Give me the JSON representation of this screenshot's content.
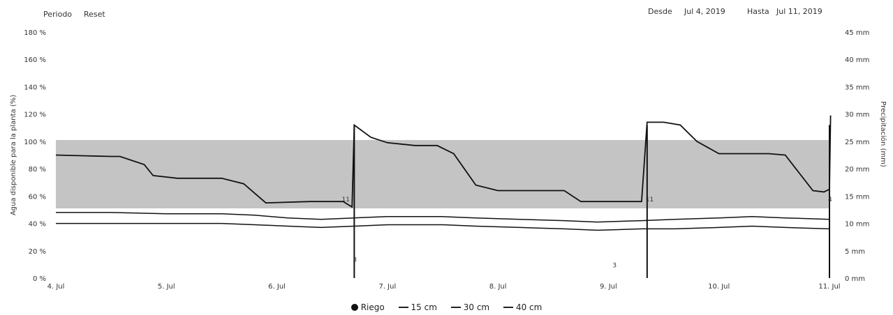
{
  "header": {
    "period_label": "Periodo",
    "reset_label": "Reset",
    "from_label": "Desde",
    "from_value": "Jul 4, 2019",
    "to_label": "Hasta",
    "to_value": "Jul 11, 2019"
  },
  "legend": {
    "riego": "Riego",
    "cm15": "15 cm",
    "cm30": "30 cm",
    "cm40": "40 cm"
  },
  "chart_data": {
    "type": "line",
    "ylabel": "Agua disponible para la planta (%)",
    "y2label": "Precipitación (mm)",
    "y_ticks": [
      "0 %",
      "20 %",
      "40 %",
      "60 %",
      "80 %",
      "100 %",
      "120 %",
      "140 %",
      "160 %",
      "180 %"
    ],
    "y_tick_values": [
      0,
      20,
      40,
      60,
      80,
      100,
      120,
      140,
      160,
      180
    ],
    "y2_ticks": [
      "0 mm",
      "5 mm",
      "10 mm",
      "15 mm",
      "20 mm",
      "25 mm",
      "30 mm",
      "35 mm",
      "40 mm",
      "45 mm"
    ],
    "y2_tick_values": [
      0,
      5,
      10,
      15,
      20,
      25,
      30,
      35,
      40,
      45
    ],
    "ylim": [
      0,
      180
    ],
    "y2lim": [
      0,
      45
    ],
    "x_ticks": [
      "4. Jul",
      "5. Jul",
      "6. Jul",
      "7. Jul",
      "8. Jul",
      "9. Jul",
      "10. Jul",
      "11. Jul"
    ],
    "x_tick_values": [
      0,
      1,
      2,
      3,
      4,
      5,
      6,
      7
    ],
    "xlim": [
      0,
      7
    ],
    "band": {
      "from": 51,
      "to": 101
    },
    "grid": false,
    "legend_position": "bottom",
    "series": [
      {
        "name": "15 cm",
        "x": [
          0,
          0.5,
          0.58,
          0.8,
          0.88,
          1.1,
          1.5,
          1.7,
          1.9,
          2.3,
          2.6,
          2.68,
          2.7,
          2.85,
          3.0,
          3.25,
          3.45,
          3.6,
          3.8,
          4.0,
          4.2,
          4.6,
          4.75,
          5.15,
          5.3,
          5.35,
          5.5,
          5.65,
          5.8,
          6.0,
          6.2,
          6.45,
          6.6,
          6.85,
          6.95,
          7.0,
          7.01
        ],
        "y": [
          90,
          89,
          89,
          83,
          75,
          73,
          73,
          69,
          55,
          56,
          56,
          52,
          112,
          103,
          99,
          97,
          97,
          91,
          68,
          64,
          64,
          64,
          56,
          56,
          56,
          114,
          114,
          112,
          100,
          91,
          91,
          91,
          90,
          64,
          63,
          65,
          119
        ]
      },
      {
        "name": "30 cm",
        "x": [
          0,
          0.5,
          1,
          1.5,
          1.8,
          2.1,
          2.4,
          2.7,
          3,
          3.5,
          3.8,
          4.2,
          4.6,
          4.9,
          5.3,
          5.6,
          6,
          6.3,
          6.6,
          7
        ],
        "y": [
          48,
          48,
          47,
          47,
          46,
          44,
          43,
          44,
          45,
          45,
          44,
          43,
          42,
          41,
          42,
          43,
          44,
          45,
          44,
          43
        ]
      },
      {
        "name": "40 cm",
        "x": [
          0,
          0.5,
          1,
          1.5,
          1.8,
          2.1,
          2.4,
          2.7,
          3,
          3.5,
          3.8,
          4.2,
          4.6,
          4.9,
          5.3,
          5.6,
          6,
          6.3,
          6.6,
          7
        ],
        "y": [
          40,
          40,
          40,
          40,
          39,
          38,
          37,
          38,
          39,
          39,
          38,
          37,
          36,
          35,
          36,
          36,
          37,
          38,
          37,
          36
        ]
      }
    ],
    "bars": {
      "name": "Riego",
      "unit": "mm",
      "x": [
        2.7,
        5.35,
        7.0
      ],
      "y": [
        28,
        28,
        28
      ]
    },
    "annotations": [
      {
        "x": 2.7,
        "y": 3,
        "text": "3"
      },
      {
        "x": 2.6,
        "y": 14,
        "text": "11"
      },
      {
        "x": 5.35,
        "y": 14,
        "text": "11"
      },
      {
        "x": 5.05,
        "y": 2,
        "text": "3"
      },
      {
        "x": 7.0,
        "y": 14,
        "text": "4"
      }
    ]
  }
}
